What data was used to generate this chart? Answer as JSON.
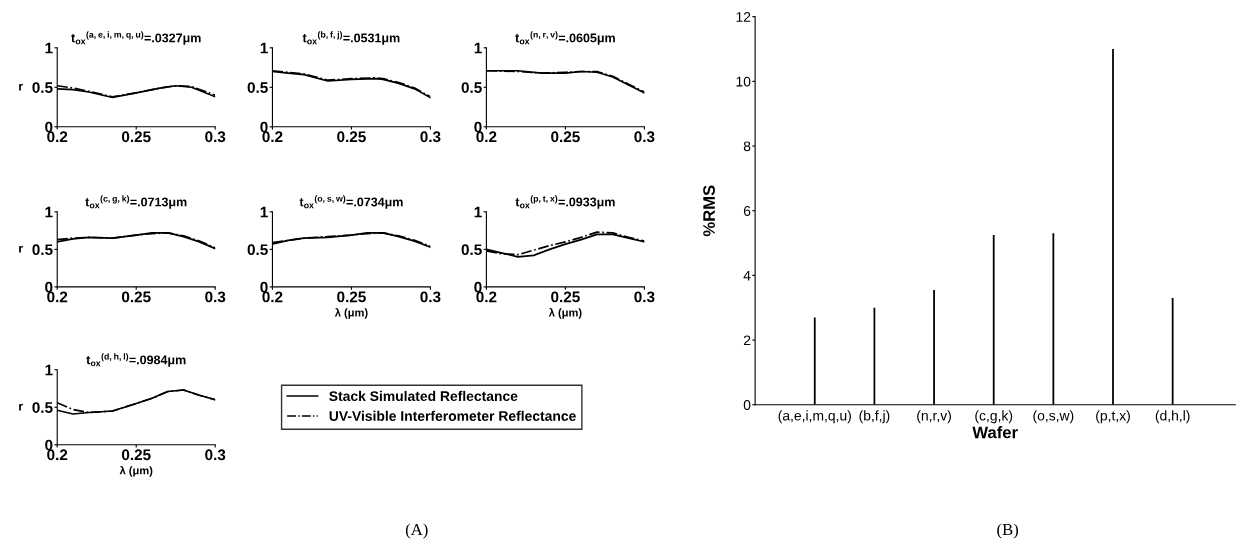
{
  "chart_data": [
    {
      "type": "line",
      "title": "t$_{ox}$$^{(a,e,i,m,q,u)}$=.0327μm",
      "ylabel": "r",
      "xlim": [
        0.2,
        0.3
      ],
      "ylim": [
        0,
        1
      ],
      "xticks": [
        0.2,
        0.25,
        0.3
      ],
      "yticks": [
        0,
        0.5,
        1
      ],
      "series": [
        {
          "color": "#000000",
          "line_style": "solid",
          "x": [
            0.2,
            0.21,
            0.22,
            0.235,
            0.25,
            0.265,
            0.275,
            0.285,
            0.3
          ],
          "values": [
            0.48,
            0.47,
            0.44,
            0.37,
            0.43,
            0.49,
            0.52,
            0.5,
            0.38
          ]
        },
        {
          "color": "#000000",
          "line_style": "dashdot",
          "x": [
            0.2,
            0.21,
            0.22,
            0.235,
            0.25,
            0.265,
            0.275,
            0.285,
            0.3
          ],
          "values": [
            0.52,
            0.49,
            0.45,
            0.38,
            0.43,
            0.49,
            0.52,
            0.51,
            0.4
          ]
        }
      ]
    },
    {
      "type": "line",
      "title": "t$_{ox}$$^{(b,f,j)}$=.0531μm",
      "xlim": [
        0.2,
        0.3
      ],
      "ylim": [
        0,
        1
      ],
      "xticks": [
        0.2,
        0.25,
        0.3
      ],
      "yticks": [
        0,
        0.5,
        1
      ],
      "series": [
        {
          "color": "#000000",
          "line_style": "solid",
          "x": [
            0.2,
            0.21,
            0.22,
            0.235,
            0.25,
            0.265,
            0.27,
            0.28,
            0.29,
            0.3
          ],
          "values": [
            0.7,
            0.68,
            0.66,
            0.58,
            0.6,
            0.61,
            0.6,
            0.55,
            0.48,
            0.37
          ]
        },
        {
          "color": "#000000",
          "line_style": "dashdot",
          "x": [
            0.2,
            0.21,
            0.22,
            0.235,
            0.25,
            0.265,
            0.27,
            0.28,
            0.29,
            0.3
          ],
          "values": [
            0.71,
            0.69,
            0.67,
            0.59,
            0.61,
            0.62,
            0.61,
            0.56,
            0.49,
            0.38
          ]
        }
      ]
    },
    {
      "type": "line",
      "title": "t$_{ox}$$^{(n,r,v)}$=.0605μm",
      "xlim": [
        0.2,
        0.3
      ],
      "ylim": [
        0,
        1
      ],
      "xticks": [
        0.2,
        0.25,
        0.3
      ],
      "yticks": [
        0,
        0.5,
        1
      ],
      "series": [
        {
          "color": "#000000",
          "line_style": "solid",
          "x": [
            0.2,
            0.22,
            0.235,
            0.25,
            0.26,
            0.27,
            0.28,
            0.29,
            0.3
          ],
          "values": [
            0.71,
            0.71,
            0.68,
            0.68,
            0.7,
            0.69,
            0.63,
            0.53,
            0.43
          ]
        },
        {
          "color": "#000000",
          "line_style": "dashdot",
          "x": [
            0.2,
            0.22,
            0.235,
            0.25,
            0.26,
            0.27,
            0.28,
            0.29,
            0.3
          ],
          "values": [
            0.71,
            0.7,
            0.68,
            0.69,
            0.7,
            0.7,
            0.64,
            0.54,
            0.44
          ]
        }
      ]
    },
    {
      "type": "line",
      "title": "t$_{ox}$$^{(c,g,k)}$=.0713μm",
      "ylabel": "r",
      "xlim": [
        0.2,
        0.3
      ],
      "ylim": [
        0,
        1
      ],
      "xticks": [
        0.2,
        0.25,
        0.3
      ],
      "yticks": [
        0,
        0.5,
        1
      ],
      "series": [
        {
          "color": "#000000",
          "line_style": "solid",
          "x": [
            0.2,
            0.21,
            0.22,
            0.235,
            0.25,
            0.26,
            0.27,
            0.28,
            0.29,
            0.3
          ],
          "values": [
            0.6,
            0.64,
            0.66,
            0.65,
            0.69,
            0.72,
            0.72,
            0.67,
            0.6,
            0.51
          ]
        },
        {
          "color": "#000000",
          "line_style": "dashdot",
          "x": [
            0.2,
            0.21,
            0.22,
            0.235,
            0.25,
            0.26,
            0.27,
            0.28,
            0.29,
            0.3
          ],
          "values": [
            0.63,
            0.65,
            0.66,
            0.65,
            0.69,
            0.71,
            0.72,
            0.68,
            0.61,
            0.52
          ]
        }
      ]
    },
    {
      "type": "line",
      "title": "t$_{ox}$$^{(o,s,w)}$=.0734μm",
      "xlabel": "λ (μm)",
      "xlim": [
        0.2,
        0.3
      ],
      "ylim": [
        0,
        1
      ],
      "xticks": [
        0.2,
        0.25,
        0.3
      ],
      "yticks": [
        0,
        0.5,
        1
      ],
      "series": [
        {
          "color": "#000000",
          "line_style": "solid",
          "x": [
            0.2,
            0.21,
            0.22,
            0.235,
            0.25,
            0.26,
            0.27,
            0.28,
            0.29,
            0.3
          ],
          "values": [
            0.57,
            0.62,
            0.65,
            0.66,
            0.69,
            0.72,
            0.72,
            0.67,
            0.61,
            0.53
          ]
        },
        {
          "color": "#000000",
          "line_style": "dashdot",
          "x": [
            0.2,
            0.21,
            0.22,
            0.235,
            0.25,
            0.26,
            0.27,
            0.28,
            0.29,
            0.3
          ],
          "values": [
            0.59,
            0.62,
            0.65,
            0.67,
            0.69,
            0.71,
            0.72,
            0.68,
            0.62,
            0.54
          ]
        }
      ]
    },
    {
      "type": "line",
      "title": "t$_{ox}$$^{(p,t,x)}$=.0933μm",
      "xlabel": "λ (μm)",
      "xlim": [
        0.2,
        0.3
      ],
      "ylim": [
        0,
        1
      ],
      "xticks": [
        0.2,
        0.25,
        0.3
      ],
      "yticks": [
        0,
        0.5,
        1
      ],
      "series": [
        {
          "color": "#000000",
          "line_style": "solid",
          "x": [
            0.2,
            0.21,
            0.22,
            0.23,
            0.24,
            0.25,
            0.26,
            0.27,
            0.28,
            0.29,
            0.3
          ],
          "values": [
            0.5,
            0.45,
            0.4,
            0.42,
            0.5,
            0.57,
            0.63,
            0.7,
            0.7,
            0.65,
            0.6
          ]
        },
        {
          "color": "#000000",
          "line_style": "dashdot",
          "x": [
            0.2,
            0.21,
            0.22,
            0.23,
            0.24,
            0.25,
            0.26,
            0.27,
            0.28,
            0.29,
            0.3
          ],
          "values": [
            0.48,
            0.44,
            0.43,
            0.49,
            0.55,
            0.6,
            0.66,
            0.73,
            0.72,
            0.66,
            0.61
          ]
        }
      ]
    },
    {
      "type": "line",
      "title": "t$_{ox}$$^{(d,h,l)}$=.0984μm",
      "ylabel": "r",
      "xlabel": "λ (μm)",
      "xlim": [
        0.2,
        0.3
      ],
      "ylim": [
        0,
        1
      ],
      "xticks": [
        0.2,
        0.25,
        0.3
      ],
      "yticks": [
        0,
        0.5,
        1
      ],
      "legend": "right",
      "annotations": [
        "(A)"
      ],
      "series": [
        {
          "name": "Stack Simulated Reflectance",
          "color": "#000000",
          "line_style": "solid",
          "x": [
            0.2,
            0.21,
            0.22,
            0.235,
            0.25,
            0.26,
            0.27,
            0.28,
            0.29,
            0.3
          ],
          "values": [
            0.46,
            0.41,
            0.43,
            0.45,
            0.55,
            0.62,
            0.71,
            0.73,
            0.66,
            0.6
          ]
        },
        {
          "name": "UV-Visible Interferometer Reflectance",
          "color": "#000000",
          "line_style": "dashdot",
          "x": [
            0.2,
            0.21,
            0.22,
            0.235,
            0.25,
            0.26,
            0.27,
            0.28,
            0.29,
            0.3
          ],
          "values": [
            0.56,
            0.47,
            0.43,
            0.45,
            0.55,
            0.62,
            0.71,
            0.73,
            0.66,
            0.6
          ]
        }
      ]
    },
    {
      "type": "bar",
      "xlabel": "Wafer",
      "ylabel": "%RMS",
      "ylim": [
        0,
        12
      ],
      "yticks": [
        0,
        2,
        4,
        6,
        8,
        10,
        12
      ],
      "annotations": [
        "(B)"
      ],
      "categories": [
        "(a,e,i,m,q,u)",
        "(b,f,j)",
        "(n,r,v)",
        "(c,g,k)",
        "(o,s,w)",
        "(p,t,x)",
        "(d,h,l)"
      ],
      "values": [
        2.7,
        3.0,
        3.55,
        5.25,
        5.3,
        11.0,
        3.3
      ],
      "color": "#000000"
    }
  ]
}
